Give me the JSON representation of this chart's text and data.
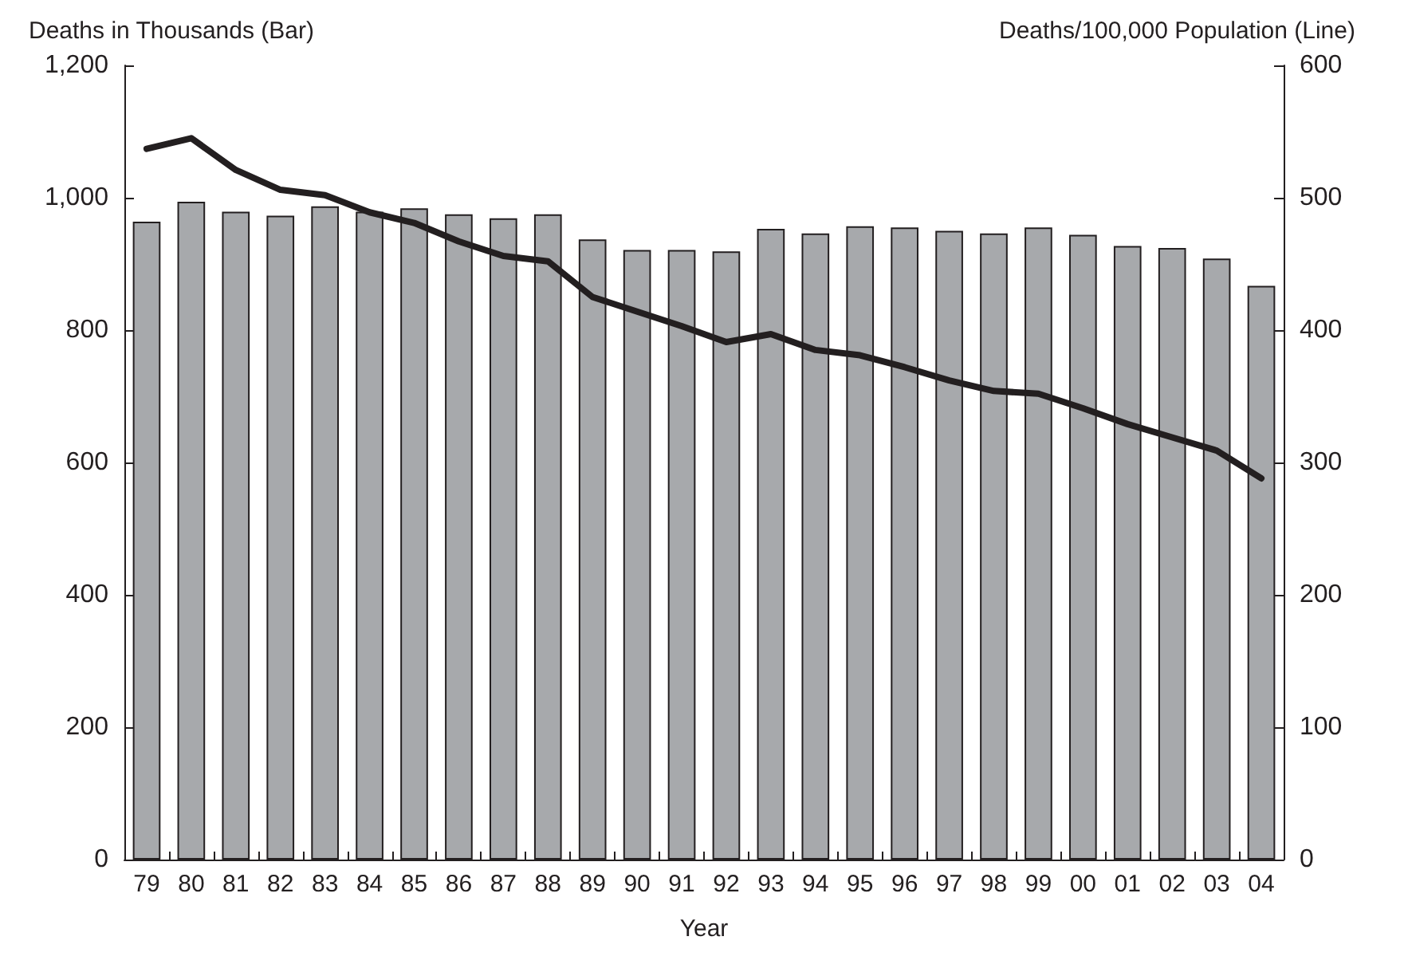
{
  "chart_data": {
    "type": "bar",
    "xlabel": "Year",
    "ylabel": "Deaths in Thousands (Bar)",
    "y2label": "Deaths/100,000 Population (Line)",
    "categories": [
      "79",
      "80",
      "81",
      "82",
      "83",
      "84",
      "85",
      "86",
      "87",
      "88",
      "89",
      "90",
      "91",
      "92",
      "93",
      "94",
      "95",
      "96",
      "97",
      "98",
      "99",
      "00",
      "01",
      "02",
      "03",
      "04"
    ],
    "series": [
      {
        "color": "#a7a9ac",
        "values": [
          964,
          994,
          979,
          973,
          987,
          979,
          984,
          975,
          969,
          975,
          937,
          921,
          921,
          919,
          953,
          946,
          957,
          955,
          950,
          946,
          955,
          944,
          927,
          924,
          908,
          867
        ]
      },
      {
        "type": "line",
        "axis": "y2",
        "color": "#231f20",
        "values": [
          537,
          545,
          521,
          506,
          502,
          489,
          481,
          467,
          456,
          452,
          425,
          414,
          403,
          391,
          397,
          385,
          381,
          372,
          362,
          354,
          352,
          341,
          329,
          319,
          309,
          288
        ]
      }
    ],
    "ylim": [
      0,
      1200
    ],
    "yticks": [
      0,
      {
        "value": 200,
        "label": "200"
      },
      {
        "value": 400,
        "label": "400"
      },
      {
        "value": 600,
        "label": "600"
      },
      {
        "value": 800,
        "label": "800"
      },
      {
        "value": 1000,
        "label": "1,000"
      },
      {
        "value": 1200,
        "label": "1,200"
      }
    ],
    "y2lim": [
      0,
      600
    ],
    "y2ticks": [
      0,
      100,
      200,
      300,
      400,
      500,
      600
    ],
    "grid": false,
    "marker": "none",
    "line_style": "solid"
  }
}
